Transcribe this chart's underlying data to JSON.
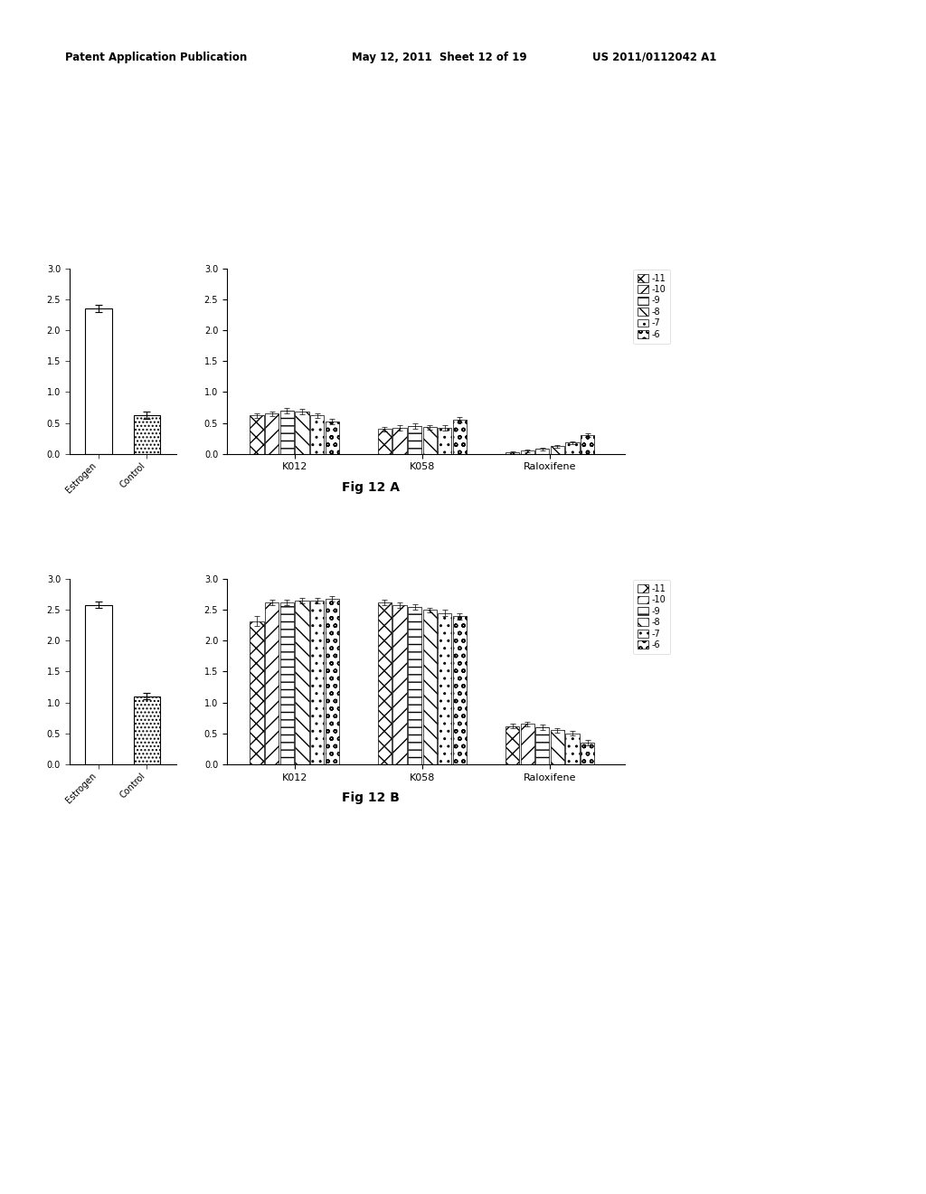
{
  "header_left": "Patent Application Publication",
  "header_middle": "May 12, 2011  Sheet 12 of 19",
  "header_right": "US 2011/0112042 A1",
  "figA": {
    "title": "Fig 12 A",
    "left_chart": {
      "categories": [
        "Estrogen",
        "Control"
      ],
      "values": [
        2.35,
        0.62
      ],
      "errors": [
        0.06,
        0.06
      ],
      "ylim": [
        0,
        3
      ],
      "yticks": [
        0,
        0.5,
        1,
        1.5,
        2,
        2.5,
        3
      ]
    },
    "right_chart": {
      "group_labels": [
        "K012",
        "K058",
        "Raloxifene"
      ],
      "series_labels": [
        "-11",
        "-10",
        "-9",
        "-8",
        "-7",
        "-6"
      ],
      "values": {
        "K012": [
          0.62,
          0.65,
          0.7,
          0.68,
          0.62,
          0.52
        ],
        "K058": [
          0.4,
          0.42,
          0.45,
          0.43,
          0.42,
          0.55
        ],
        "Raloxifene": [
          0.02,
          0.05,
          0.08,
          0.12,
          0.18,
          0.3
        ]
      },
      "errors": {
        "K012": [
          0.04,
          0.04,
          0.04,
          0.04,
          0.04,
          0.04
        ],
        "K058": [
          0.04,
          0.04,
          0.05,
          0.04,
          0.04,
          0.04
        ],
        "Raloxifene": [
          0.02,
          0.02,
          0.02,
          0.02,
          0.02,
          0.03
        ]
      },
      "ylim": [
        0,
        3
      ],
      "yticks": [
        0,
        0.5,
        1,
        1.5,
        2,
        2.5,
        3
      ]
    }
  },
  "figB": {
    "title": "Fig 12 B",
    "left_chart": {
      "categories": [
        "Estrogen",
        "Control"
      ],
      "values": [
        2.58,
        1.1
      ],
      "errors": [
        0.05,
        0.05
      ],
      "ylim": [
        0,
        3
      ],
      "yticks": [
        0,
        0.5,
        1,
        1.5,
        2,
        2.5,
        3
      ]
    },
    "right_chart": {
      "group_labels": [
        "K012",
        "K058",
        "Raloxifene"
      ],
      "series_labels": [
        "-11",
        "-10",
        "-9",
        "-8",
        "-7",
        "-6"
      ],
      "values": {
        "K012": [
          2.32,
          2.62,
          2.62,
          2.65,
          2.65,
          2.68
        ],
        "K058": [
          2.62,
          2.58,
          2.55,
          2.5,
          2.45,
          2.4
        ],
        "Raloxifene": [
          0.62,
          0.65,
          0.6,
          0.55,
          0.5,
          0.35
        ]
      },
      "errors": {
        "K012": [
          0.08,
          0.04,
          0.04,
          0.04,
          0.04,
          0.04
        ],
        "K058": [
          0.04,
          0.04,
          0.04,
          0.04,
          0.05,
          0.05
        ],
        "Raloxifene": [
          0.04,
          0.04,
          0.04,
          0.04,
          0.04,
          0.04
        ]
      },
      "ylim": [
        0,
        3
      ],
      "yticks": [
        0,
        0.5,
        1,
        1.5,
        2,
        2.5,
        3
      ]
    }
  },
  "background_color": "#ffffff",
  "legend_labels": [
    "-11",
    "-10",
    "-9",
    "-8",
    "-7",
    "-6"
  ]
}
